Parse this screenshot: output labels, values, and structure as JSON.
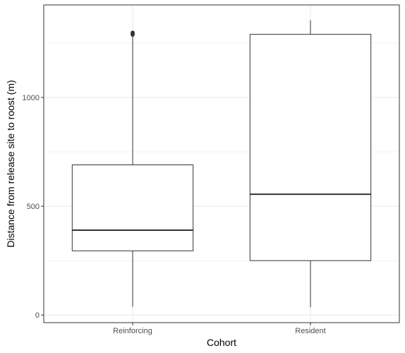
{
  "chart_data": {
    "type": "box",
    "xlabel": "Cohort",
    "ylabel": "Distance from release site to roost (m)",
    "categories": [
      "Reinforcing",
      "Resident"
    ],
    "ylim": [
      -35,
      1425
    ],
    "y_ticks": [
      0,
      500,
      1000
    ],
    "y_minor_ticks": [
      250,
      750,
      1250
    ],
    "grid": true,
    "boxes": [
      {
        "category": "Reinforcing",
        "min": 38,
        "q1": 295,
        "median": 390,
        "q3": 690,
        "max": 1283,
        "outliers": [
          1288,
          1292,
          1295,
          1298
        ]
      },
      {
        "category": "Resident",
        "min": 35,
        "q1": 250,
        "median": 555,
        "q3": 1290,
        "max": 1355,
        "outliers": []
      }
    ],
    "colors": {
      "panel_border": "#333333",
      "grid": "#ebebeb",
      "box_stroke": "#333333",
      "box_fill": "#ffffff"
    }
  }
}
